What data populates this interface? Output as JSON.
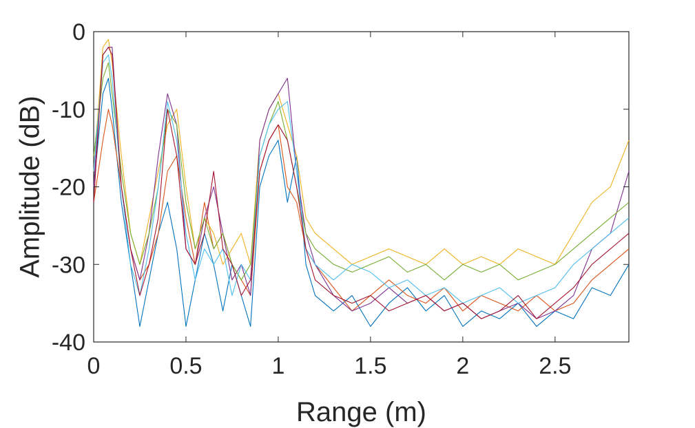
{
  "chart_data": {
    "type": "line",
    "title": "",
    "xlabel": "Range (m)",
    "ylabel": "Amplitude (dB)",
    "xlim": [
      0,
      2.9
    ],
    "ylim": [
      -40,
      0
    ],
    "x_ticks": [
      0,
      0.5,
      1,
      1.5,
      2,
      2.5
    ],
    "x_tick_labels": [
      "0",
      "0.5",
      "1",
      "1.5",
      "2",
      "2.5"
    ],
    "y_ticks": [
      0,
      -10,
      -20,
      -30,
      -40
    ],
    "y_tick_labels": [
      "0",
      "-10",
      "-20",
      "-30",
      "-40"
    ],
    "grid": false,
    "legend": "none",
    "x": [
      0,
      0.05,
      0.08,
      0.1,
      0.15,
      0.2,
      0.25,
      0.3,
      0.35,
      0.4,
      0.45,
      0.5,
      0.55,
      0.6,
      0.65,
      0.7,
      0.75,
      0.8,
      0.85,
      0.9,
      0.95,
      1.0,
      1.05,
      1.1,
      1.15,
      1.2,
      1.3,
      1.4,
      1.5,
      1.6,
      1.7,
      1.8,
      1.9,
      2.0,
      2.1,
      2.2,
      2.3,
      2.4,
      2.5,
      2.6,
      2.7,
      2.8,
      2.9
    ],
    "series": [
      {
        "color": "#0072BD",
        "values": [
          -20,
          -8,
          -6,
          -10,
          -22,
          -30,
          -38,
          -32,
          -26,
          -22,
          -28,
          -38,
          -32,
          -26,
          -30,
          -36,
          -30,
          -34,
          -38,
          -20,
          -16,
          -14,
          -22,
          -16,
          -30,
          -34,
          -36,
          -34,
          -38,
          -35,
          -33,
          -36,
          -34,
          -38,
          -36,
          -37,
          -35,
          -38,
          -36,
          -37,
          -33,
          -34,
          -30
        ]
      },
      {
        "color": "#D95319",
        "values": [
          -22,
          -14,
          -10,
          -12,
          -20,
          -28,
          -32,
          -30,
          -26,
          -18,
          -16,
          -24,
          -30,
          -22,
          -28,
          -26,
          -30,
          -32,
          -34,
          -18,
          -14,
          -12,
          -20,
          -22,
          -28,
          -30,
          -33,
          -36,
          -34,
          -32,
          -34,
          -35,
          -33,
          -36,
          -34,
          -35,
          -36,
          -34,
          -36,
          -35,
          -32,
          -30,
          -28
        ]
      },
      {
        "color": "#EDB120",
        "values": [
          -18,
          -2,
          -1,
          -4,
          -16,
          -26,
          -30,
          -24,
          -18,
          -12,
          -10,
          -20,
          -28,
          -24,
          -26,
          -30,
          -28,
          -26,
          -30,
          -14,
          -10,
          -8,
          -12,
          -16,
          -24,
          -26,
          -28,
          -30,
          -29,
          -28,
          -29,
          -30,
          -28,
          -30,
          -29,
          -30,
          -28,
          -29,
          -30,
          -26,
          -22,
          -20,
          -14
        ]
      },
      {
        "color": "#7E2F8E",
        "values": [
          -20,
          -3,
          -2,
          -2,
          -20,
          -28,
          -32,
          -26,
          -16,
          -8,
          -12,
          -28,
          -30,
          -24,
          -20,
          -26,
          -32,
          -30,
          -34,
          -14,
          -10,
          -8,
          -6,
          -18,
          -26,
          -30,
          -34,
          -36,
          -35,
          -33,
          -35,
          -34,
          -36,
          -35,
          -37,
          -36,
          -35,
          -37,
          -36,
          -34,
          -28,
          -26,
          -18
        ]
      },
      {
        "color": "#77AC30",
        "values": [
          -16,
          -6,
          -4,
          -8,
          -18,
          -26,
          -30,
          -26,
          -20,
          -10,
          -12,
          -22,
          -28,
          -24,
          -28,
          -26,
          -30,
          -32,
          -30,
          -16,
          -12,
          -9,
          -14,
          -20,
          -26,
          -28,
          -30,
          -31,
          -30,
          -29,
          -31,
          -30,
          -32,
          -30,
          -31,
          -30,
          -32,
          -31,
          -30,
          -28,
          -26,
          -24,
          -22
        ]
      },
      {
        "color": "#4DBEEE",
        "values": [
          -18,
          -4,
          -3,
          -6,
          -20,
          -30,
          -34,
          -28,
          -20,
          -9,
          -14,
          -26,
          -32,
          -28,
          -30,
          -28,
          -34,
          -30,
          -32,
          -16,
          -12,
          -10,
          -9,
          -18,
          -28,
          -30,
          -32,
          -30,
          -31,
          -33,
          -32,
          -34,
          -33,
          -35,
          -34,
          -33,
          -35,
          -34,
          -33,
          -30,
          -28,
          -26,
          -24
        ]
      },
      {
        "color": "#A2142F",
        "values": [
          -22,
          -3,
          -2,
          -3,
          -20,
          -28,
          -34,
          -30,
          -24,
          -10,
          -16,
          -28,
          -30,
          -26,
          -18,
          -28,
          -30,
          -34,
          -32,
          -18,
          -14,
          -12,
          -14,
          -20,
          -28,
          -32,
          -34,
          -35,
          -34,
          -36,
          -35,
          -34,
          -36,
          -35,
          -37,
          -36,
          -34,
          -37,
          -35,
          -33,
          -30,
          -28,
          -26
        ]
      }
    ]
  }
}
